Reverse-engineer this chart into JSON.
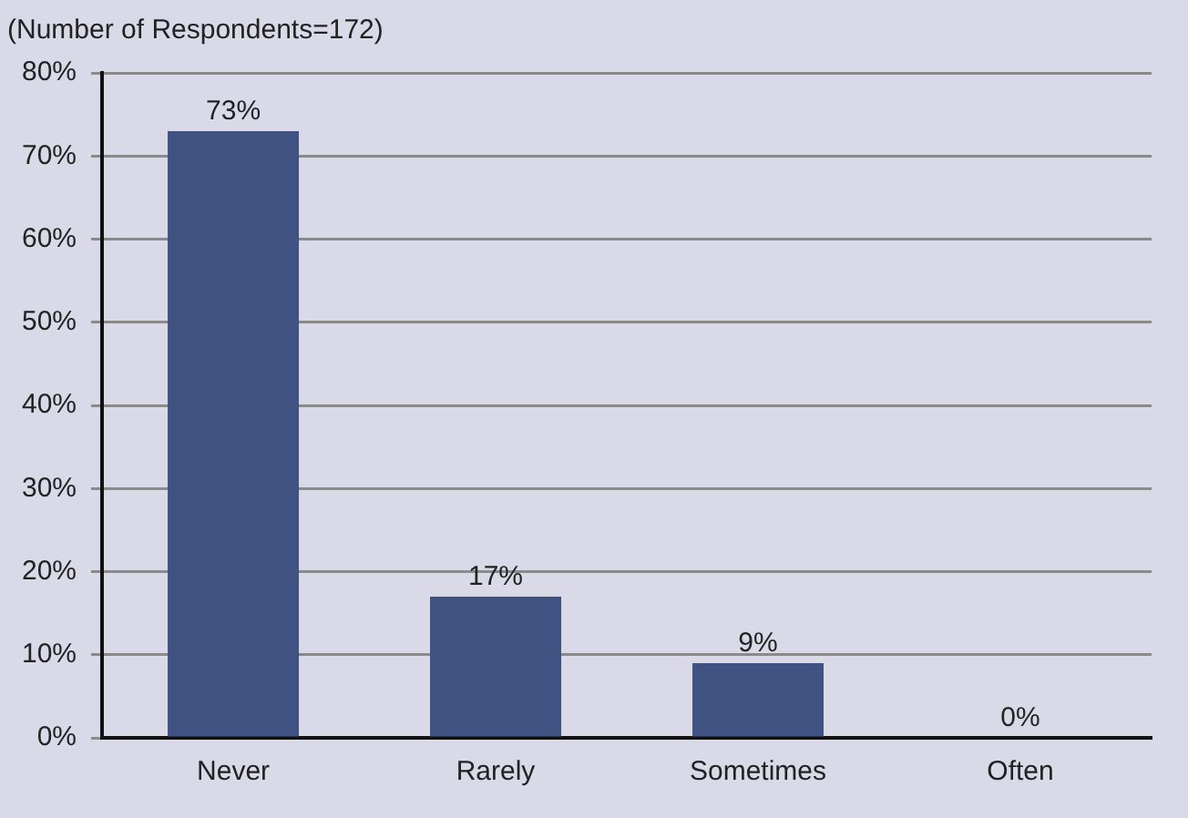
{
  "chart_data": {
    "type": "bar",
    "title": "(Number of Respondents=172)",
    "categories": [
      "Never",
      "Rarely",
      "Sometimes",
      "Often"
    ],
    "values": [
      73,
      17,
      9,
      0
    ],
    "color": "#3f5282",
    "value_labels": [
      "73%",
      "17%",
      "9%",
      "0%"
    ],
    "ylim": [
      0,
      80
    ],
    "yticks": [
      {
        "value": 0,
        "label": "0%"
      },
      {
        "value": 10,
        "label": "10%"
      },
      {
        "value": 20,
        "label": "20%"
      },
      {
        "value": 30,
        "label": "30%"
      },
      {
        "value": 40,
        "label": "40%"
      },
      {
        "value": 50,
        "label": "50%"
      },
      {
        "value": 60,
        "label": "60%"
      },
      {
        "value": 70,
        "label": "70%"
      },
      {
        "value": 80,
        "label": "80%"
      }
    ],
    "grid": "y",
    "legend": false
  }
}
